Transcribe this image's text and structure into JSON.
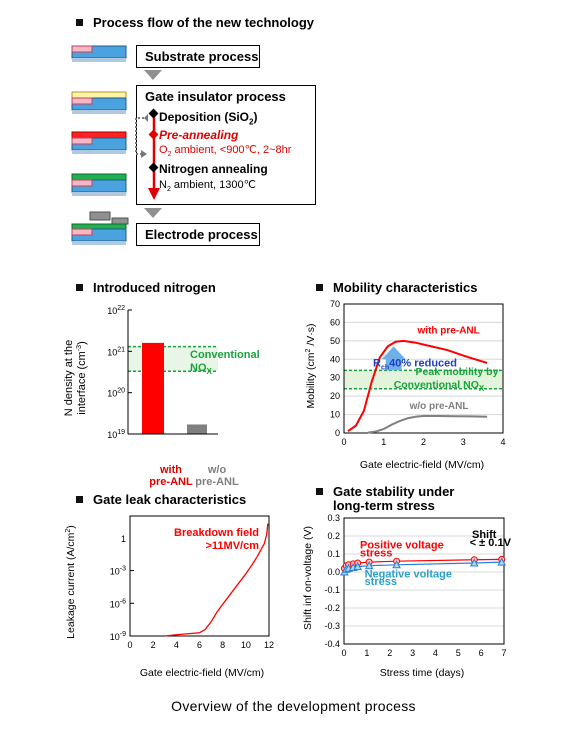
{
  "process_flow": {
    "title": "Process flow of the new technology",
    "substrate": "Substrate process",
    "gate_insulator": "Gate insulator process",
    "deposition": "Deposition (SiO",
    "deposition_sub": "2",
    "deposition_end": ")",
    "preannealing": "Pre-annealing",
    "preannealing_cond": "O",
    "preannealing_cond_sub": "2",
    "preannealing_cond_end": " ambient, <900℃, 2~8hr",
    "nitrogen": "Nitrogen annealing",
    "nitrogen_cond": "N",
    "nitrogen_cond_sub": "2",
    "nitrogen_cond_end": " ambient, 1300℃",
    "electrode": "Electrode process"
  },
  "nitrogen_panel": {
    "title": "Introduced nitrogen",
    "ylabel_line1": "N density at the",
    "ylabel_line2": "interface (cm",
    "ylabel_sup": "-3",
    "ylabel_end": ")",
    "bar1_label_line1": "with",
    "bar1_label_line2": "pre-ANL",
    "bar2_label_line1": "w/o",
    "bar2_label_line2": "pre-ANL",
    "conv_line1": "Conventional",
    "conv_line2": "NO",
    "conv_sub": "X"
  },
  "mobility_panel": {
    "title": "Mobility characteristics",
    "ylabel": "Mobility (cm",
    "ylabel_sup": "2",
    "ylabel_end": " /V·s)",
    "xlabel": "Gate electric-field (MV/cm)",
    "with_label": "with pre-ANL",
    "without_label": "w/o pre-ANL",
    "rch_label": "R",
    "rch_sub": "ch",
    "rch_end": "40% reduced",
    "peak_line1": "Peak mobility by",
    "peak_line2": "Conventional NO",
    "peak_sub": "X"
  },
  "leak_panel": {
    "title": "Gate leak characteristics",
    "ylabel": "Leakage current (A/cm",
    "ylabel_sup": "2",
    "ylabel_end": ")",
    "xlabel": "Gate electric-field (MV/cm)",
    "breakdown_line1": "Breakdown field",
    "breakdown_line2": ">11MV/cm"
  },
  "stability_panel": {
    "title_line1": "Gate stability under",
    "title_line2": "long-term stress",
    "ylabel": "Shift inf on-voltage  (V)",
    "xlabel": "Stress time (days)",
    "pos_line1": "Positive voltage",
    "pos_line2": "stress",
    "neg_line1": "Negative voltage",
    "neg_line2": "stress",
    "shift_line1": "Shift",
    "shift_line2": "< ± 0.1V"
  },
  "caption": "Overview of the development process",
  "colors": {
    "red": "#ff0000",
    "green": "#1aa33c",
    "gray": "#808080",
    "blue": "#2a7fd4",
    "teal": "#2aa0c8"
  },
  "chart_data": [
    {
      "type": "bar",
      "title": "Introduced nitrogen",
      "ylabel": "N density at the interface (cm-3)",
      "yscale": "log",
      "ylim": [
        1e+19,
        1e+22
      ],
      "categories": [
        "with pre-ANL",
        "w/o pre-ANL"
      ],
      "values": [
        1.6e+21,
        1.7e+19
      ],
      "yticks": [
        "10^19",
        "10^20",
        "10^21",
        "10^22"
      ],
      "band": {
        "label": "Conventional NOx",
        "range": [
          3.3e+20,
          1.3e+21
        ]
      }
    },
    {
      "type": "line",
      "title": "Mobility characteristics",
      "xlabel": "Gate electric-field (MV/cm)",
      "ylabel": "Mobility (cm2 /V·s)",
      "xlim": [
        0,
        4
      ],
      "ylim": [
        0,
        70
      ],
      "xticks": [
        0,
        1,
        2,
        3,
        4
      ],
      "yticks": [
        0,
        10,
        20,
        30,
        40,
        50,
        60,
        70
      ],
      "series": [
        {
          "name": "with pre-ANL",
          "x": [
            0.1,
            0.3,
            0.5,
            0.7,
            0.9,
            1.1,
            1.3,
            1.5,
            1.8,
            2.2,
            2.6,
            3.0,
            3.3,
            3.6
          ],
          "y": [
            1,
            4,
            12,
            28,
            41,
            47,
            49.5,
            50,
            49,
            47,
            45,
            42,
            40,
            38
          ]
        },
        {
          "name": "w/o pre-ANL",
          "x": [
            0.6,
            0.8,
            1.0,
            1.2,
            1.4,
            1.6,
            1.8,
            2.0,
            2.4,
            2.8,
            3.2,
            3.6
          ],
          "y": [
            0.2,
            0.8,
            2.2,
            4.5,
            6.5,
            8,
            8.8,
            9.2,
            9.2,
            9.1,
            9.0,
            8.8
          ]
        }
      ],
      "band": {
        "label": "Peak mobility by Conventional NOx",
        "range": [
          24,
          34
        ]
      }
    },
    {
      "type": "line",
      "title": "Gate leak characteristics",
      "xlabel": "Gate electric-field (MV/cm)",
      "ylabel": "Leakage current (A/cm2)",
      "yscale": "log",
      "xlim": [
        0,
        12
      ],
      "ylim": [
        1e-09,
        100
      ],
      "xticks": [
        0,
        2,
        4,
        6,
        8,
        10,
        12
      ],
      "yticks": [
        "10^-9",
        "10^-6",
        "10^-3",
        "1"
      ],
      "series": [
        {
          "name": "",
          "x": [
            3,
            4,
            5,
            6,
            6.5,
            7,
            7.5,
            8,
            8.5,
            9,
            9.5,
            10,
            10.5,
            11,
            11.3,
            11.6,
            11.8,
            11.9
          ],
          "y": [
            1e-09,
            1.3e-09,
            1.6e-09,
            2e-09,
            4e-09,
            2e-08,
            1.5e-07,
            8e-07,
            4e-06,
            2e-05,
            0.0001,
            0.0005,
            0.003,
            0.02,
            0.08,
            0.3,
            2,
            20
          ]
        }
      ]
    },
    {
      "type": "line",
      "title": "Gate stability under long-term stress",
      "xlabel": "Stress time (days)",
      "ylabel": "Shift inf on-voltage  (V)",
      "xlim": [
        0,
        7
      ],
      "ylim": [
        -0.4,
        0.3
      ],
      "xticks": [
        0,
        1,
        2,
        3,
        4,
        5,
        6,
        7
      ],
      "yticks": [
        -0.4,
        -0.3,
        -0.2,
        -0.1,
        0,
        0.1,
        0.2,
        0.3
      ],
      "series": [
        {
          "name": "Positive voltage stress",
          "x": [
            0.02,
            0.1,
            0.2,
            0.4,
            0.6,
            1.1,
            2.3,
            5.7,
            6.9
          ],
          "y": [
            0.02,
            0.035,
            0.04,
            0.045,
            0.05,
            0.055,
            0.06,
            0.068,
            0.07
          ]
        },
        {
          "name": "Negative voltage stress",
          "x": [
            0.02,
            0.1,
            0.2,
            0.4,
            0.6,
            1.1,
            2.3,
            5.7,
            6.9
          ],
          "y": [
            0.0,
            0.015,
            0.02,
            0.025,
            0.03,
            0.035,
            0.04,
            0.05,
            0.055
          ]
        }
      ]
    }
  ]
}
